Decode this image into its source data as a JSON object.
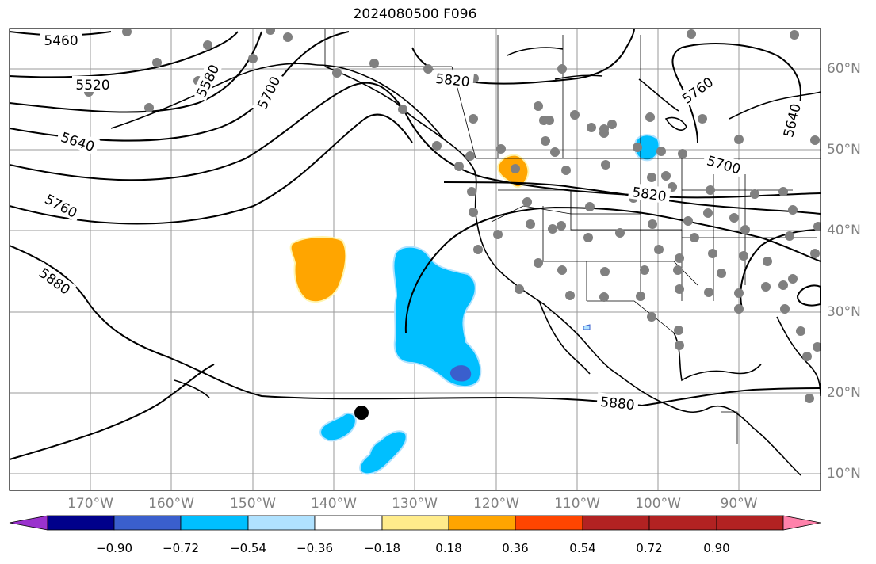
{
  "title": "2024080500 F096",
  "lon_labels": [
    "170°W",
    "160°W",
    "150°W",
    "140°W",
    "130°W",
    "120°W",
    "110°W",
    "100°W",
    "90°W"
  ],
  "lat_labels": [
    "60°N",
    "50°N",
    "40°N",
    "30°N",
    "20°N",
    "10°N"
  ],
  "contour_labels": [
    "5460",
    "5520",
    "5580",
    "5640",
    "5700",
    "5760",
    "5820",
    "5880"
  ],
  "colorbar": {
    "ticks": [
      "−0.90",
      "−0.72",
      "−0.54",
      "−0.36",
      "−0.18",
      "0.18",
      "0.36",
      "0.54",
      "0.72",
      "0.90"
    ],
    "colors": [
      "#9a32cd",
      "#00008b",
      "#3a5fcd",
      "#00bfff",
      "#b0e2ff",
      "#ffffff",
      "#ffec8b",
      "#ffa500",
      "#ff4500",
      "#b22222",
      "#ff82ab"
    ]
  },
  "map": {
    "extent_lon": [
      -180,
      -80
    ],
    "extent_lat": [
      8,
      65
    ],
    "grid": true,
    "station_color": "#808080",
    "marker_color": "#000000"
  }
}
